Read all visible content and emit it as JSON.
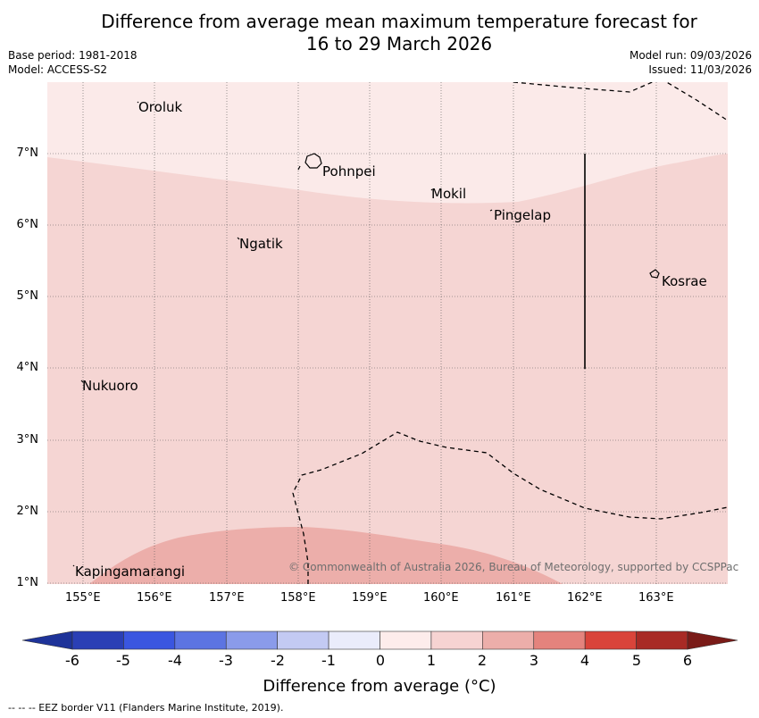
{
  "title": {
    "line1": "Difference from average mean maximum temperature forecast for",
    "line2": "16 to 29 March 2026"
  },
  "meta": {
    "base_period": "Base period: 1981-2018",
    "model": "Model: ACCESS-S2",
    "model_run": "Model run: 09/03/2026",
    "issued": "Issued: 11/03/2026"
  },
  "map": {
    "lat_ticks": [
      "7°N",
      "6°N",
      "5°N",
      "4°N",
      "3°N",
      "2°N",
      "1°N"
    ],
    "lon_ticks": [
      "155°E",
      "156°E",
      "157°E",
      "158°E",
      "159°E",
      "160°E",
      "161°E",
      "162°E",
      "163°E"
    ],
    "places": {
      "oroluk": "Oroluk",
      "pohnpei": "Pohnpei",
      "mokil": "Mokil",
      "pingelap": "Pingelap",
      "ngatik": "Ngatik",
      "kosrae": "Kosrae",
      "nukuoro": "Nukuoro",
      "kapingamarangi": "Kapingamarangi"
    },
    "copyright": "© Commonwealth of Australia 2026, Bureau of Meteorology, supported by CCSPPac",
    "regions": [
      {
        "category": "0 to 1",
        "color": "#fbeae9"
      },
      {
        "category": "1 to 2",
        "color": "#f5d5d3"
      },
      {
        "category": "2 to 3",
        "color": "#ecaeaa"
      }
    ]
  },
  "colorbar": {
    "labels": [
      "-6",
      "-5",
      "-4",
      "-3",
      "-2",
      "-1",
      "0",
      "1",
      "2",
      "3",
      "4",
      "5",
      "6"
    ],
    "colors": [
      "#1e3399",
      "#2a3fb5",
      "#3a56e0",
      "#5c74e2",
      "#8a9bea",
      "#c3caf3",
      "#eaecfb",
      "#fdeceb",
      "#f6d3d2",
      "#ecaeaa",
      "#e4837d",
      "#d9443a",
      "#a82a25",
      "#7a1b18"
    ],
    "title": "Difference from average (°C)"
  },
  "footnote": "--  --  -- EEZ border V11 (Flanders Marine Institute, 2019)."
}
